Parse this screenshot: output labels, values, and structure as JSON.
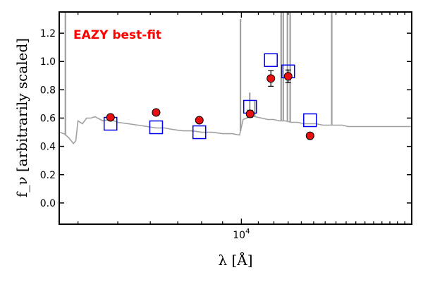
{
  "chart_data": {
    "type": "scatter",
    "title": "",
    "xlabel": "λ [Å]",
    "ylabel": "f_ν [arbitrarily scaled]",
    "x_scale": "log",
    "xlim": [
      3600,
      26000
    ],
    "ylim": [
      -0.15,
      1.35
    ],
    "grid": false,
    "y_ticks": [
      0.0,
      0.2,
      0.4,
      0.6,
      0.8,
      1.0,
      1.2
    ],
    "y_tick_labels": [
      "0.0",
      "0.2",
      "0.4",
      "0.6",
      "0.8",
      "1.0",
      "1.2"
    ],
    "x_tick_label": {
      "base": "10",
      "exp": "4"
    },
    "annotation": "EAZY best-fit",
    "colors": {
      "observed": "#e81010",
      "model_photometry": "#0000ee",
      "template": "#a0a0a0",
      "annotation": "#ff0000"
    },
    "series": [
      {
        "marker": "circle",
        "x": [
          4800,
          6200,
          7900,
          10500,
          11800,
          13000,
          14700
        ],
        "y": [
          0.605,
          0.64,
          0.585,
          0.63,
          0.88,
          0.895,
          0.475
        ],
        "yerr": [
          0.0,
          0.0,
          0.0,
          0.025,
          0.055,
          0.045,
          0.02
        ]
      },
      {
        "marker": "square",
        "x": [
          4800,
          6200,
          7900,
          10500,
          11800,
          13000,
          14700
        ],
        "y": [
          0.56,
          0.535,
          0.5,
          0.68,
          1.01,
          0.93,
          0.585
        ]
      }
    ],
    "template_spectrum": {
      "x": [
        3600,
        3700,
        3800,
        3900,
        3950,
        4000,
        4100,
        4200,
        4300,
        4400,
        4600,
        4800,
        5000,
        5300,
        5600,
        5900,
        6200,
        6500,
        6800,
        7200,
        7600,
        8000,
        8500,
        9000,
        9500,
        9900,
        10100,
        10300,
        10500,
        10800,
        11200,
        11600,
        12000,
        12400,
        12800,
        13200,
        13700,
        14200,
        14700,
        15200,
        15800,
        16400,
        17000,
        17600,
        18200,
        19000,
        20000,
        21000,
        22000,
        23000,
        24000,
        25000,
        26000
      ],
      "y": [
        0.5,
        0.49,
        0.46,
        0.42,
        0.44,
        0.58,
        0.56,
        0.6,
        0.6,
        0.61,
        0.58,
        0.59,
        0.57,
        0.56,
        0.55,
        0.54,
        0.53,
        0.53,
        0.52,
        0.51,
        0.51,
        0.5,
        0.5,
        0.49,
        0.49,
        0.48,
        0.59,
        0.6,
        0.61,
        0.61,
        0.6,
        0.59,
        0.59,
        0.58,
        0.58,
        0.57,
        0.57,
        0.56,
        0.56,
        0.56,
        0.55,
        0.55,
        0.55,
        0.55,
        0.54,
        0.54,
        0.54,
        0.54,
        0.54,
        0.54,
        0.54,
        0.54,
        0.54
      ]
    },
    "emission_lines": [
      {
        "x": 3727,
        "peak": 1.6
      },
      {
        "x": 9950,
        "peak": 1.3
      },
      {
        "x": 10480,
        "peak": 0.78
      },
      {
        "x": 10780,
        "peak": 0.72
      },
      {
        "x": 12500,
        "peak": 1.6
      },
      {
        "x": 12650,
        "peak": 1.6
      },
      {
        "x": 12950,
        "peak": 1.6
      },
      {
        "x": 13150,
        "peak": 1.6
      },
      {
        "x": 16600,
        "peak": 1.6
      }
    ]
  }
}
